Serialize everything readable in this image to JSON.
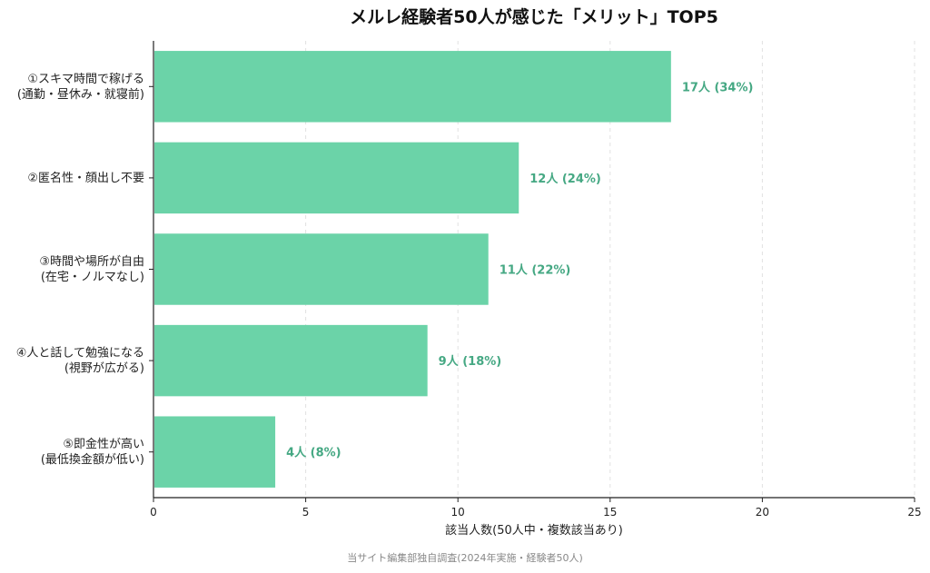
{
  "chart_data": {
    "type": "bar",
    "orientation": "horizontal",
    "title": "メルレ経験者50人が感じた「メリット」TOP5",
    "categories": [
      [
        "①スキマ時間で稼げる",
        "(通勤・昼休み・就寝前)"
      ],
      [
        "②匿名性・顔出し不要"
      ],
      [
        "③時間や場所が自由",
        "(在宅・ノルマなし)"
      ],
      [
        "④人と話して勉強になる",
        "(視野が広がる)"
      ],
      [
        "⑤即金性が高い",
        "(最低換金額が低い)"
      ]
    ],
    "values": [
      17,
      12,
      11,
      9,
      4
    ],
    "data_labels": [
      "17人 (34%)",
      "12人 (24%)",
      "11人 (22%)",
      "9人 (18%)",
      "4人 (8%)"
    ],
    "xlabel": "該当人数(50人中・複数該当あり)",
    "ylabel": "",
    "xlim": [
      0,
      25
    ],
    "xticks": [
      0,
      5,
      10,
      15,
      20,
      25
    ],
    "grid": "vertical-dashed",
    "bar_color": "#6bd3a8",
    "label_color": "#45a883"
  },
  "source": "当サイト編集部独自調査(2024年実施・経験者50人)"
}
